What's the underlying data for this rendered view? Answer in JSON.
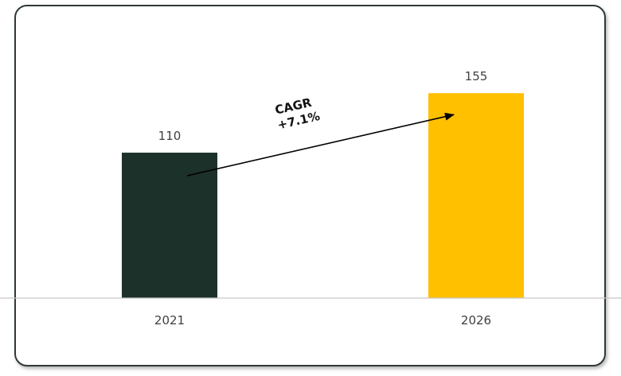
{
  "chart_data": {
    "type": "bar",
    "categories": [
      "2021",
      "2026"
    ],
    "values": [
      110,
      155
    ],
    "colors": [
      "#1c3129",
      "#ffc000"
    ],
    "ylim": [
      0,
      190
    ],
    "grid": false,
    "annotation": {
      "line1": "CAGR",
      "line2": "+7.1%"
    }
  }
}
